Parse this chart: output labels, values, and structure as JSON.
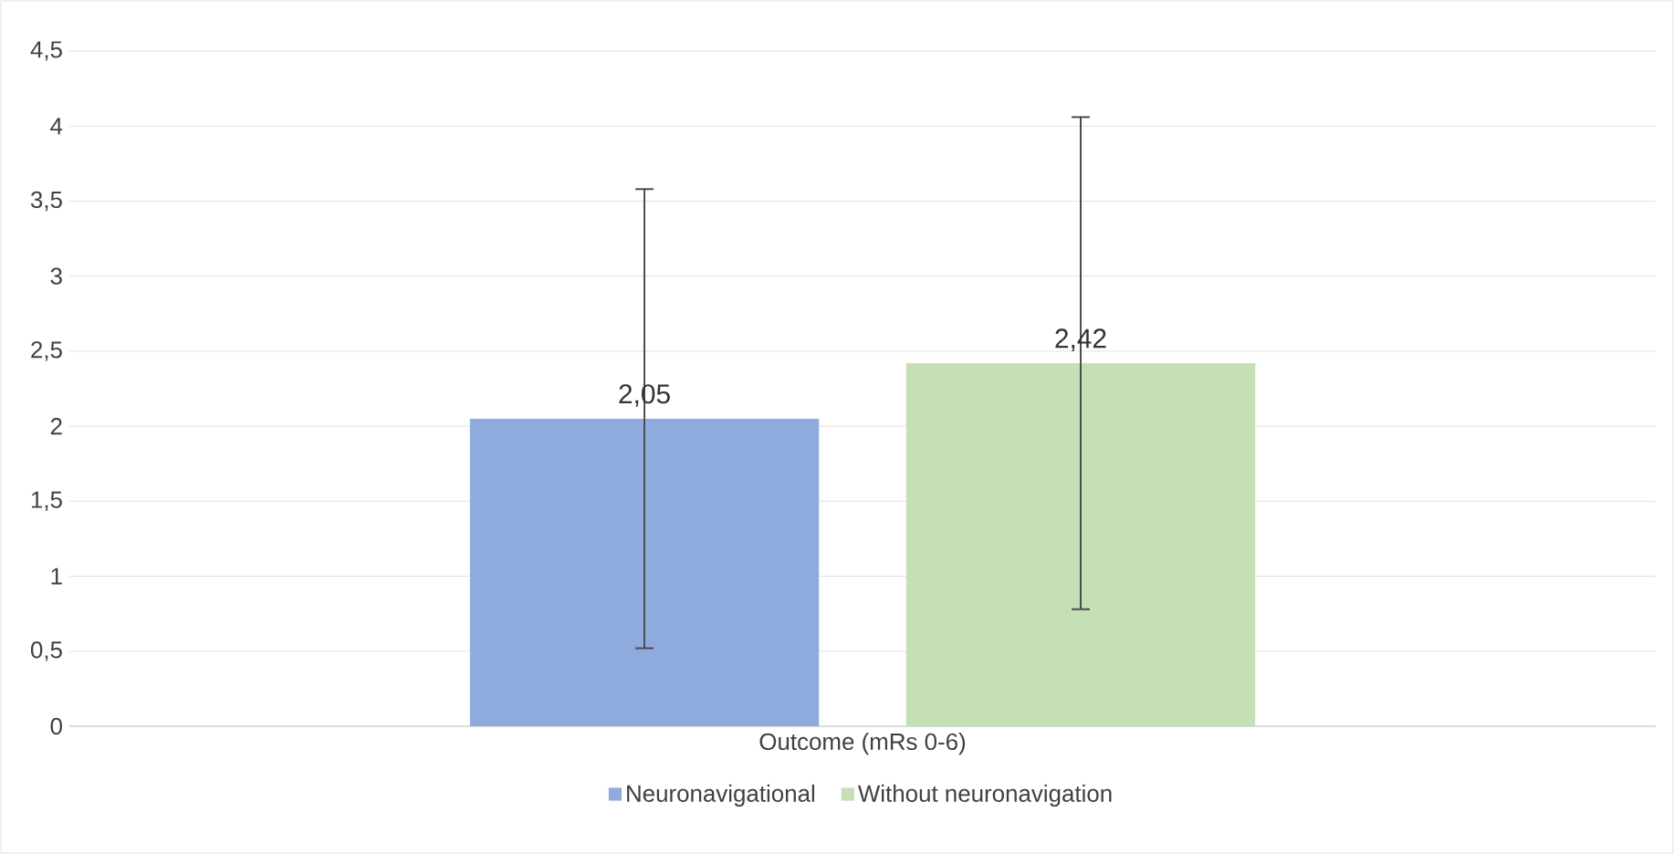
{
  "chart_data": {
    "type": "bar",
    "categories": [
      "Outcome (mRs 0-6)"
    ],
    "series": [
      {
        "name": "Neuronavigational",
        "color": "#8faadc",
        "values": [
          2.05
        ],
        "errors": [
          1.53
        ],
        "value_labels": [
          "2,05"
        ]
      },
      {
        "name": "Without neuronavigation",
        "color": "#c5e0b4",
        "values": [
          2.42
        ],
        "errors": [
          1.64
        ],
        "value_labels": [
          "2,42"
        ]
      }
    ],
    "ylim": [
      0,
      4.5
    ],
    "yticks": [
      0,
      {
        "value": 0.5,
        "label": "0,5"
      },
      1,
      {
        "value": 1.5,
        "label": "1,5"
      },
      2,
      {
        "value": 2.5,
        "label": "2,5"
      },
      3,
      {
        "value": 3.5,
        "label": "3,5"
      },
      4,
      {
        "value": 4.5,
        "label": "4,5"
      }
    ],
    "grid": "y",
    "legend": "bottom"
  }
}
